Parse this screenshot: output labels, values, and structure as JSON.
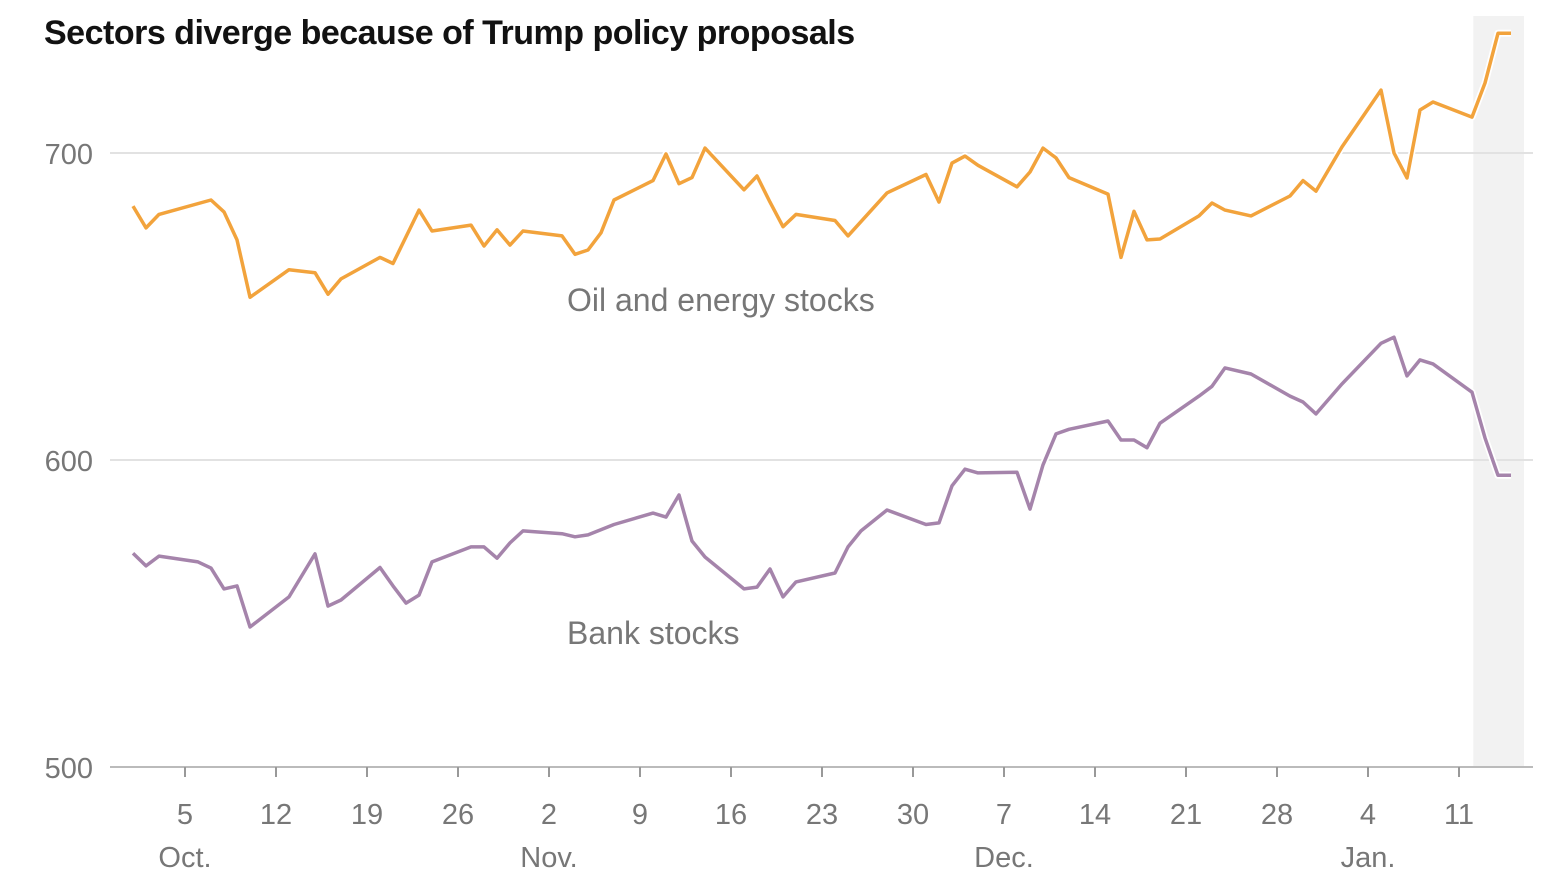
{
  "chart_data": {
    "type": "line",
    "title": "Sectors diverge because of Trump policy proposals",
    "xlabel": "",
    "ylabel": "",
    "x_unit": "days since Oct. 1",
    "ylim": [
      500,
      740
    ],
    "y_ticks": [
      {
        "value": 500,
        "label": "500"
      },
      {
        "value": 600,
        "label": "600"
      },
      {
        "value": 700,
        "label": "700"
      }
    ],
    "grid": true,
    "x_ticks": [
      {
        "x": 4,
        "label": "5"
      },
      {
        "x": 11,
        "label": "12"
      },
      {
        "x": 18,
        "label": "19"
      },
      {
        "x": 25,
        "label": "26"
      },
      {
        "x": 32,
        "label": "2"
      },
      {
        "x": 39,
        "label": "9"
      },
      {
        "x": 46,
        "label": "16"
      },
      {
        "x": 53,
        "label": "23"
      },
      {
        "x": 60,
        "label": "30"
      },
      {
        "x": 67,
        "label": "7"
      },
      {
        "x": 74,
        "label": "14"
      },
      {
        "x": 81,
        "label": "21"
      },
      {
        "x": 88,
        "label": "28"
      },
      {
        "x": 95,
        "label": "4"
      },
      {
        "x": 102,
        "label": "11"
      }
    ],
    "month_labels": [
      {
        "x": 4,
        "label": "Oct."
      },
      {
        "x": 32,
        "label": "Nov."
      },
      {
        "x": 67,
        "label": "Dec."
      },
      {
        "x": 95,
        "label": "Jan."
      }
    ],
    "shaded_range": [
      103.1,
      107
    ],
    "series": [
      {
        "name": "Oil and energy stocks",
        "color": "#f2a33c",
        "points": [
          [
            0,
            682.7
          ],
          [
            1,
            675.6
          ],
          [
            2,
            680
          ],
          [
            6,
            684.7
          ],
          [
            7,
            680.8
          ],
          [
            8,
            671.7
          ],
          [
            9,
            653
          ],
          [
            12,
            662
          ],
          [
            14,
            661
          ],
          [
            15,
            654
          ],
          [
            16,
            659
          ],
          [
            19,
            666
          ],
          [
            20,
            664
          ],
          [
            22,
            681.4
          ],
          [
            23,
            674.6
          ],
          [
            26,
            676.5
          ],
          [
            27,
            669.7
          ],
          [
            28,
            675
          ],
          [
            29,
            670
          ],
          [
            30,
            674.6
          ],
          [
            33,
            673
          ],
          [
            34,
            667
          ],
          [
            35,
            668.4
          ],
          [
            36,
            674
          ],
          [
            37,
            684.7
          ],
          [
            40,
            691
          ],
          [
            41,
            699.7
          ],
          [
            42,
            690
          ],
          [
            43,
            692
          ],
          [
            44,
            701.6
          ],
          [
            47,
            688
          ],
          [
            48,
            692.5
          ],
          [
            49,
            684
          ],
          [
            50,
            676
          ],
          [
            51,
            680
          ],
          [
            54,
            678
          ],
          [
            55,
            673
          ],
          [
            58,
            687
          ],
          [
            61,
            693
          ],
          [
            62,
            684
          ],
          [
            63,
            696.7
          ],
          [
            64,
            699
          ],
          [
            65,
            696
          ],
          [
            68,
            689
          ],
          [
            69,
            693.8
          ],
          [
            70,
            701.6
          ],
          [
            71,
            698.4
          ],
          [
            72,
            692
          ],
          [
            75,
            686.6
          ],
          [
            76,
            666
          ],
          [
            77,
            681
          ],
          [
            78,
            671.7
          ],
          [
            79,
            672
          ],
          [
            82,
            679.5
          ],
          [
            83,
            683.7
          ],
          [
            84,
            681.4
          ],
          [
            86,
            679.5
          ],
          [
            89,
            686
          ],
          [
            90,
            691
          ],
          [
            91,
            687.6
          ],
          [
            93,
            702
          ],
          [
            96,
            720.5
          ],
          [
            97,
            700
          ],
          [
            98,
            691.9
          ],
          [
            99,
            714
          ],
          [
            100,
            716.6
          ],
          [
            103,
            711.7
          ],
          [
            104,
            722.8
          ],
          [
            105,
            739
          ],
          [
            106,
            739
          ]
        ]
      },
      {
        "name": "Bank stocks",
        "color": "#a584ab",
        "points": [
          [
            0,
            569.6
          ],
          [
            1,
            565.5
          ],
          [
            2,
            568.7
          ],
          [
            5,
            566.8
          ],
          [
            6,
            564.8
          ],
          [
            7,
            558
          ],
          [
            8,
            559
          ],
          [
            9,
            545.6
          ],
          [
            12,
            555.4
          ],
          [
            14,
            569.4
          ],
          [
            15,
            552.4
          ],
          [
            16,
            554.4
          ],
          [
            19,
            565
          ],
          [
            20,
            559
          ],
          [
            21,
            553.4
          ],
          [
            22,
            556
          ],
          [
            23,
            566.8
          ],
          [
            26,
            571.7
          ],
          [
            27,
            571.7
          ],
          [
            28,
            568
          ],
          [
            29,
            573
          ],
          [
            30,
            576.9
          ],
          [
            33,
            576
          ],
          [
            34,
            575
          ],
          [
            35,
            575.6
          ],
          [
            37,
            579
          ],
          [
            40,
            582.7
          ],
          [
            41,
            581.4
          ],
          [
            42,
            588.6
          ],
          [
            43,
            573.6
          ],
          [
            44,
            568.4
          ],
          [
            47,
            558
          ],
          [
            48,
            558.6
          ],
          [
            49,
            564.5
          ],
          [
            50,
            555.4
          ],
          [
            51,
            560.3
          ],
          [
            54,
            563.2
          ],
          [
            55,
            571.7
          ],
          [
            56,
            576.9
          ],
          [
            58,
            583.7
          ],
          [
            61,
            579
          ],
          [
            62,
            579.5
          ],
          [
            63,
            591.6
          ],
          [
            64,
            597
          ],
          [
            65,
            595.8
          ],
          [
            68,
            596
          ],
          [
            69,
            584
          ],
          [
            70,
            598.4
          ],
          [
            71,
            608.5
          ],
          [
            72,
            610
          ],
          [
            75,
            612.7
          ],
          [
            76,
            606.5
          ],
          [
            77,
            606.5
          ],
          [
            78,
            604
          ],
          [
            79,
            612
          ],
          [
            82,
            620.8
          ],
          [
            83,
            624
          ],
          [
            84,
            630
          ],
          [
            86,
            628
          ],
          [
            89,
            620.8
          ],
          [
            90,
            618.9
          ],
          [
            91,
            615
          ],
          [
            93,
            624.8
          ],
          [
            96,
            638
          ],
          [
            97,
            640
          ],
          [
            98,
            627.4
          ],
          [
            99,
            632.6
          ],
          [
            100,
            631.3
          ],
          [
            103,
            622.1
          ],
          [
            104,
            607.2
          ],
          [
            105,
            595
          ],
          [
            106,
            595
          ]
        ]
      }
    ]
  }
}
